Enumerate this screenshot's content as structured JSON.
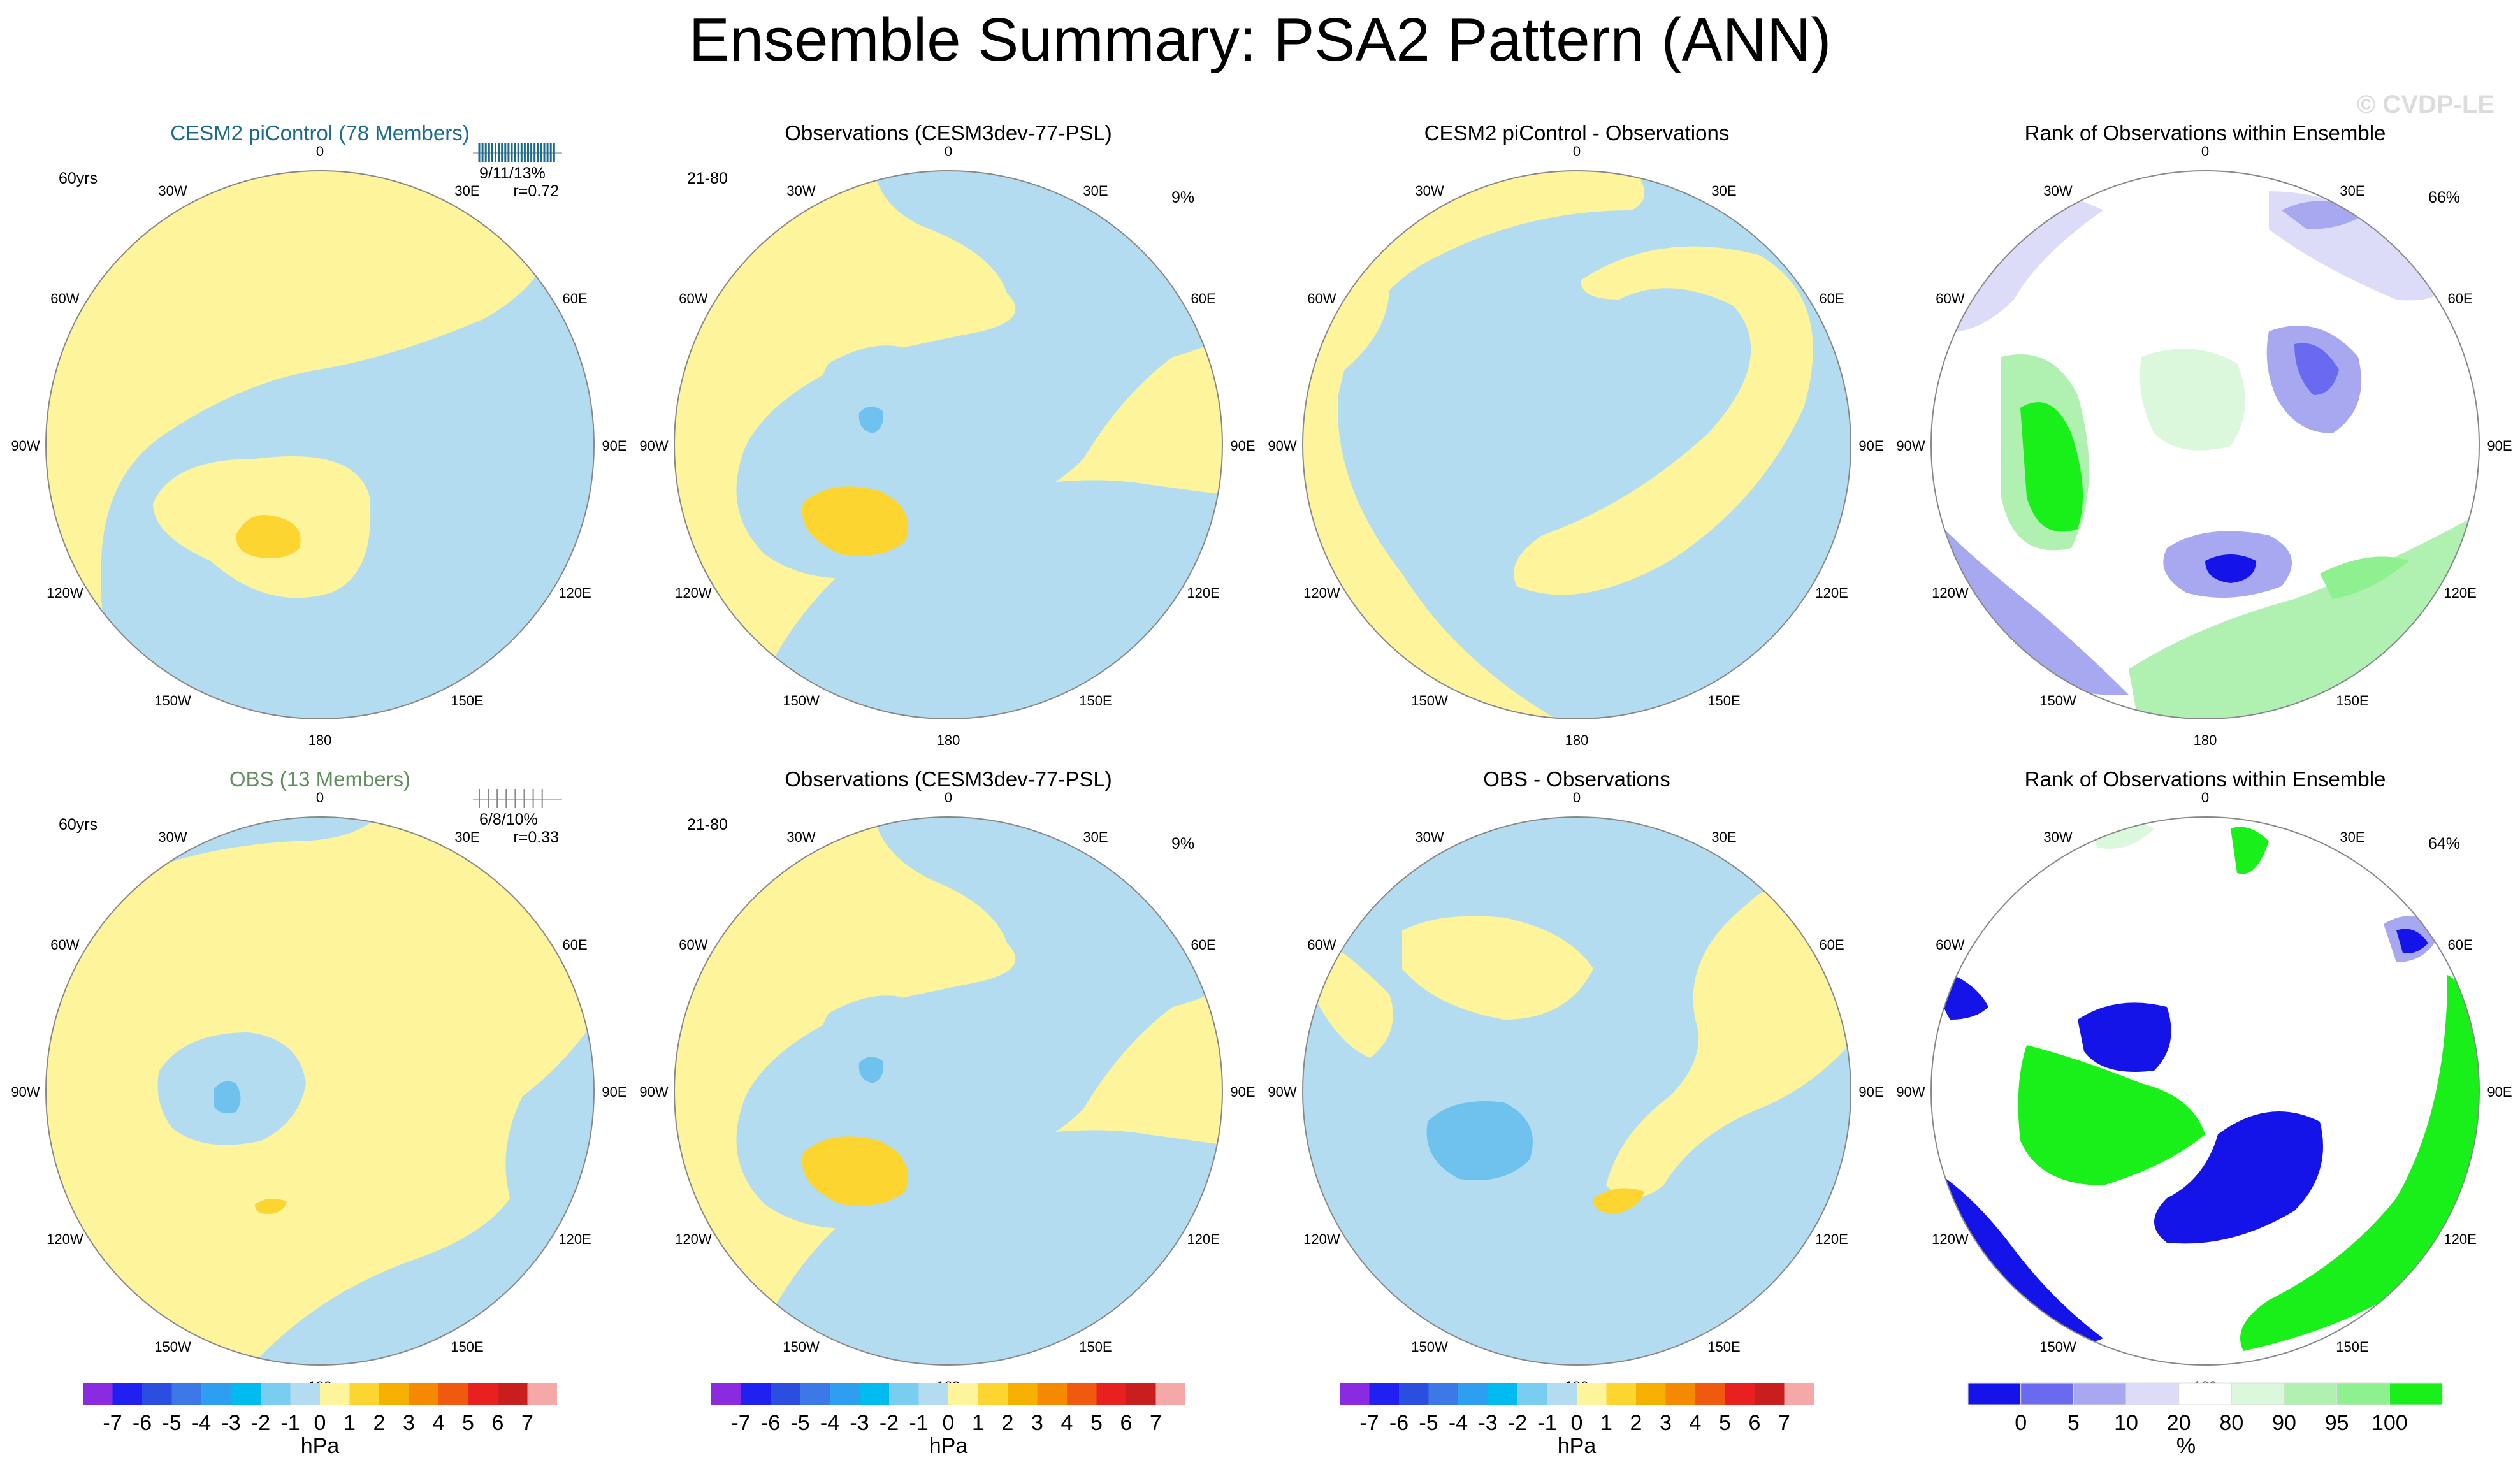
{
  "title": "Ensemble Summary: PSA2 Pattern (ANN)",
  "watermark": "© CVDP-LE",
  "lon_labels": [
    "0",
    "30E",
    "60E",
    "90E",
    "120E",
    "150E",
    "180",
    "150W",
    "120W",
    "90W",
    "60W",
    "30W"
  ],
  "colors": {
    "positive": "#fdf49b",
    "negative": "#b4dcf1",
    "pos_strong": "#fdd530",
    "neg_strong": "#6fc1ee",
    "cesm_title": "#1c6a8b",
    "obs_title": "#5f8f5f",
    "rank_high": "#19f019",
    "rank_mid": "#b0f0b0",
    "rank_low": "#1414e8",
    "rank_lowmid": "#a8a8f0"
  },
  "panels": {
    "r0c0": {
      "title": "CESM2 piControl (78 Members)",
      "left": "60yrs",
      "stats1": "9/11/13%",
      "stats2": "r=0.72"
    },
    "r0c1": {
      "title": "Observations (CESM3dev-77-PSL)",
      "left": "21-80",
      "right": "9%"
    },
    "r0c2": {
      "title": "CESM2 piControl - Observations"
    },
    "r0c3": {
      "title": "Rank of Observations within Ensemble",
      "right": "66%"
    },
    "r1c0": {
      "title": "OBS (13 Members)",
      "left": "60yrs",
      "stats1": "6/8/10%",
      "stats2": "r=0.33"
    },
    "r1c1": {
      "title": "Observations (CESM3dev-77-PSL)",
      "left": "21-80",
      "right": "9%"
    },
    "r1c2": {
      "title": "OBS - Observations"
    },
    "r1c3": {
      "title": "Rank of Observations within Ensemble",
      "right": "64%"
    }
  },
  "colorbar_hpa": {
    "unit": "hPa",
    "tick_labels": [
      "-7",
      "-6",
      "-5",
      "-4",
      "-3",
      "-2",
      "-1",
      "0",
      "1",
      "2",
      "3",
      "4",
      "5",
      "6",
      "7"
    ],
    "colors": [
      "#8a2be2",
      "#2020f0",
      "#2a4fe0",
      "#3c78e8",
      "#2d9ef0",
      "#00bbf0",
      "#78cdf0",
      "#b4dcf1",
      "#fdf49b",
      "#fdd530",
      "#f5b000",
      "#f58a00",
      "#f05a10",
      "#e82020",
      "#c81e1e",
      "#f4a8a8"
    ]
  },
  "colorbar_rank": {
    "unit": "%",
    "tick_labels": [
      "0",
      "5",
      "10",
      "20",
      "80",
      "90",
      "95",
      "100"
    ],
    "colors": [
      "#1414e8",
      "#6a6af0",
      "#a8a8f0",
      "#dcdcf8",
      "#ffffff",
      "#dcf8dc",
      "#b0f0b0",
      "#8ef08e",
      "#19f019"
    ]
  },
  "chart_data": [
    {
      "type": "heatmap",
      "panel": "CESM2 piControl (78 Members)",
      "projection": "south polar stereographic",
      "units": "hPa",
      "contour_levels": [
        -7,
        -6,
        -5,
        -4,
        -3,
        -2,
        -1,
        0,
        1,
        2,
        3,
        4,
        5,
        6,
        7
      ],
      "stats": "9/11/13%",
      "correlation": 0.72,
      "period": "60yrs"
    },
    {
      "type": "heatmap",
      "panel": "Observations (CESM3dev-77-PSL)",
      "projection": "south polar stereographic",
      "units": "hPa",
      "years": "21-80",
      "variance_explained": "9%"
    },
    {
      "type": "heatmap",
      "panel": "CESM2 piControl - Observations",
      "projection": "south polar stereographic",
      "units": "hPa"
    },
    {
      "type": "heatmap",
      "panel": "Rank of Observations within Ensemble",
      "units": "%",
      "levels": [
        0,
        5,
        10,
        20,
        80,
        90,
        95,
        100
      ],
      "summary": "66%"
    },
    {
      "type": "heatmap",
      "panel": "OBS (13 Members)",
      "projection": "south polar stereographic",
      "units": "hPa",
      "stats": "6/8/10%",
      "correlation": 0.33,
      "period": "60yrs"
    },
    {
      "type": "heatmap",
      "panel": "Observations (CESM3dev-77-PSL)",
      "projection": "south polar stereographic",
      "units": "hPa",
      "years": "21-80",
      "variance_explained": "9%"
    },
    {
      "type": "heatmap",
      "panel": "OBS - Observations",
      "projection": "south polar stereographic",
      "units": "hPa"
    },
    {
      "type": "heatmap",
      "panel": "Rank of Observations within Ensemble",
      "units": "%",
      "levels": [
        0,
        5,
        10,
        20,
        80,
        90,
        95,
        100
      ],
      "summary": "64%"
    }
  ]
}
